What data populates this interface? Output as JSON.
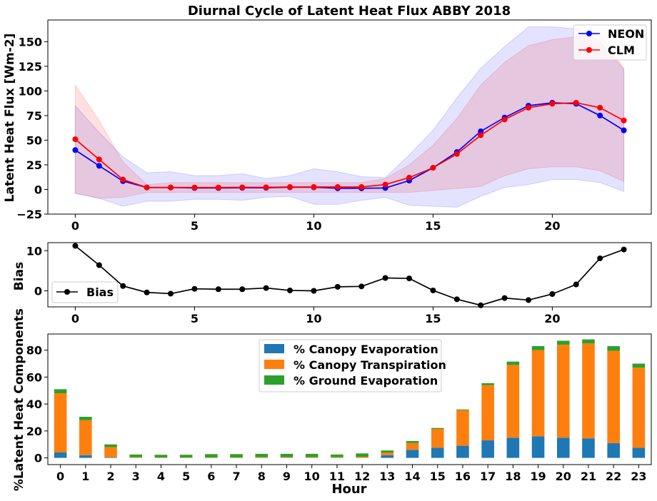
{
  "colors": {
    "neon": "#0000ff",
    "clm": "#ff0000",
    "bias": "#000000",
    "canopy_evap": "#1f77b4",
    "canopy_transp": "#ff7f0e",
    "ground_evap": "#2ca02c"
  },
  "chart_data": [
    {
      "type": "line",
      "title": "Diurnal Cycle of Latent Heat Flux ABBY 2018",
      "ylabel": "Latent Heat Flux [Wm-2]",
      "xlabel": "",
      "xlim": [
        -1.15,
        24.15
      ],
      "ylim": [
        -25,
        172
      ],
      "xticks": [
        0,
        5,
        10,
        15,
        20
      ],
      "yticks": [
        -25,
        0,
        25,
        50,
        75,
        100,
        125,
        150
      ],
      "legend": "top-right",
      "x": [
        0,
        1,
        2,
        3,
        4,
        5,
        6,
        7,
        8,
        9,
        10,
        11,
        12,
        13,
        14,
        15,
        16,
        17,
        18,
        19,
        20,
        21,
        22,
        23
      ],
      "series": [
        {
          "name": "NEON",
          "values": [
            40,
            24,
            8.5,
            2,
            2,
            1.5,
            1.5,
            1.7,
            1.7,
            2.2,
            2.2,
            1.2,
            1.2,
            1.5,
            9,
            22,
            38,
            59,
            73,
            85,
            88,
            87,
            75,
            60
          ],
          "band_upper": [
            85,
            58,
            33,
            17,
            18,
            14,
            14,
            16,
            11,
            14,
            21,
            18,
            13,
            12,
            35,
            60,
            93,
            123,
            145,
            165,
            165,
            163,
            150,
            122
          ],
          "band_lower": [
            -4,
            -9,
            -17,
            -12,
            -12,
            -10,
            -10,
            -11,
            -8,
            -7,
            -15,
            -15,
            -11,
            -8,
            -16,
            -17,
            -18,
            -7,
            2,
            5,
            10,
            10,
            7,
            -2
          ]
        },
        {
          "name": "CLM",
          "values": [
            51,
            30.5,
            10,
            2,
            2,
            2,
            2,
            2.2,
            2.2,
            2.5,
            2.5,
            2.5,
            2.5,
            5,
            12,
            22,
            36,
            55,
            71,
            83,
            87,
            88,
            83,
            70
          ],
          "band_upper": [
            106,
            70,
            28,
            5,
            7,
            7,
            7,
            7,
            7,
            7,
            7,
            7,
            7,
            11,
            25,
            45,
            72,
            106,
            129,
            146,
            152,
            155,
            158,
            123
          ],
          "band_lower": [
            -4,
            -9,
            -8,
            -3,
            -3,
            -3,
            -3,
            -3,
            -3,
            -3,
            -3,
            -3,
            -3,
            -3,
            -3,
            -1,
            1,
            3,
            14,
            21,
            23,
            23,
            19,
            8
          ]
        }
      ]
    },
    {
      "type": "line",
      "title": "",
      "ylabel": "Bias",
      "xlim": [
        -1.15,
        24.15
      ],
      "ylim": [
        -4,
        12
      ],
      "xticks": [
        0,
        5,
        10,
        15,
        20
      ],
      "yticks": [
        0,
        10
      ],
      "legend": "bottom-left",
      "x": [
        0,
        1,
        2,
        3,
        4,
        5,
        6,
        7,
        8,
        9,
        10,
        11,
        12,
        13,
        14,
        15,
        16,
        17,
        18,
        19,
        20,
        21,
        22,
        23
      ],
      "series": [
        {
          "name": "Bias",
          "values": [
            11.2,
            6.4,
            1.2,
            -0.4,
            -0.7,
            0.5,
            0.4,
            0.4,
            0.7,
            0.1,
            0.0,
            1.0,
            1.1,
            3.2,
            3.1,
            0.1,
            -2.1,
            -3.6,
            -1.8,
            -2.3,
            -0.8,
            1.6,
            8.1,
            10.3
          ]
        }
      ]
    },
    {
      "type": "bar",
      "stacked": true,
      "title": "",
      "xlabel": "Hour",
      "ylabel": "%Latent Heat Components",
      "ylim": [
        -5,
        92
      ],
      "yticks": [
        0,
        20,
        40,
        60,
        80
      ],
      "legend": "upper-center",
      "categories": [
        "0",
        "1",
        "2",
        "3",
        "4",
        "5",
        "6",
        "7",
        "8",
        "9",
        "10",
        "11",
        "12",
        "13",
        "14",
        "15",
        "16",
        "17",
        "18",
        "19",
        "20",
        "21",
        "22",
        "23"
      ],
      "series": [
        {
          "name": "% Canopy Evaporation",
          "values": [
            4,
            2,
            0.5,
            0,
            0,
            0,
            0,
            0,
            0,
            0,
            0,
            0,
            0,
            2,
            6,
            7.5,
            9,
            13,
            15,
            16,
            15,
            14.5,
            11,
            7.5
          ]
        },
        {
          "name": "% Canopy Transpiration",
          "values": [
            44,
            26,
            7.5,
            0.5,
            0.3,
            0.3,
            0.3,
            0.3,
            0.5,
            0.5,
            0.5,
            0.5,
            0.8,
            2,
            5,
            14,
            26.5,
            41,
            54,
            64,
            69,
            70.5,
            68.5,
            59.5
          ]
        },
        {
          "name": "% Ground Evaporation",
          "values": [
            3,
            2.5,
            2,
            2,
            2,
            2,
            2.5,
            2.5,
            2.5,
            2.5,
            2.5,
            2,
            2.5,
            1.5,
            1.5,
            0.7,
            0.5,
            1.5,
            2.5,
            3,
            3,
            3,
            3.5,
            3
          ]
        }
      ]
    }
  ]
}
